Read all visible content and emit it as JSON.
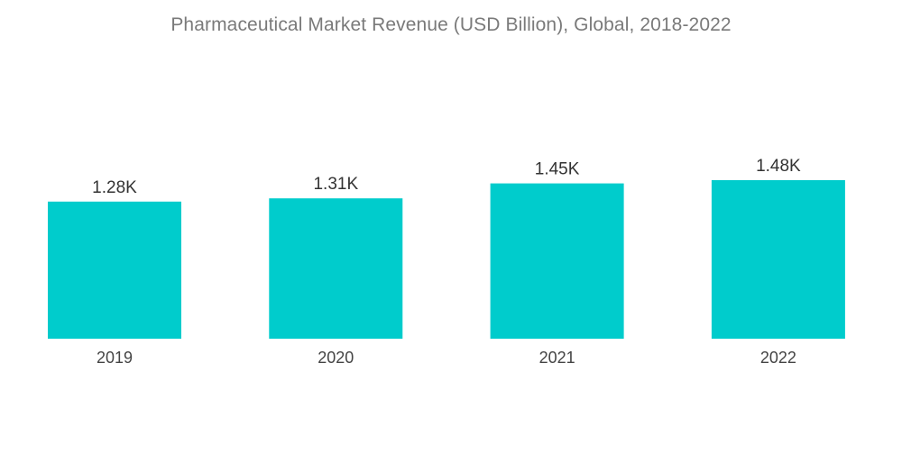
{
  "chart_data": {
    "type": "bar",
    "title": "Pharmaceutical Market Revenue (USD Billion), Global, 2018-2022",
    "categories": [
      "2019",
      "2020",
      "2021",
      "2022"
    ],
    "values": [
      1280,
      1310,
      1450,
      1480
    ],
    "value_labels": [
      "1.28K",
      "1.31K",
      "1.45K",
      "1.48K"
    ],
    "xlabel": "",
    "ylabel": "",
    "ylim": [
      0,
      1480
    ],
    "grid": false,
    "legend": "none",
    "colors": {
      "bar": "#00cccc"
    }
  }
}
